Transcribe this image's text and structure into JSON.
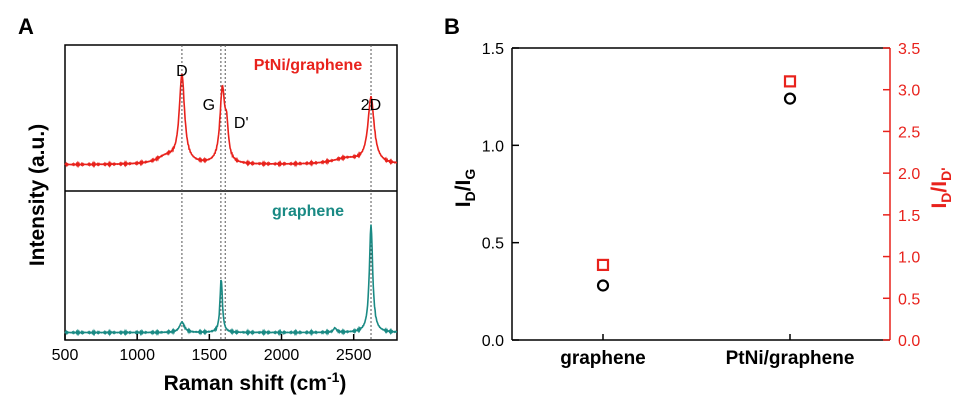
{
  "colors": {
    "red": "#e8221c",
    "teal": "#1a8a84",
    "black": "#000000"
  },
  "panel_a": {
    "letter": "A",
    "xlabel_main": "Raman shift (cm",
    "xlabel_sup": "-1",
    "xlabel_end": ")",
    "ylabel": "Intensity (a.u.)"
  },
  "panel_b": {
    "letter": "B",
    "ylabel_main": "I",
    "ylabel_sub1": "D",
    "ylabel_sep": "/I",
    "ylabel_sub2": "G",
    "y2label_main": "I",
    "y2label_sub1": "D",
    "y2label_sep": "/I",
    "y2label_sub2": "D'"
  },
  "chart_data": [
    {
      "type": "line",
      "panel": "A",
      "xlabel": "Raman shift (cm-1)",
      "ylabel": "Intensity (a.u.)",
      "xlim": [
        500,
        2800
      ],
      "xticks": [
        "500",
        "1000",
        "1500",
        "2000",
        "2500"
      ],
      "xtick_values": [
        500,
        1000,
        1500,
        2000,
        2500
      ],
      "peaks": [
        {
          "label": "D",
          "x": 1310
        },
        {
          "label": "G",
          "x": 1580
        },
        {
          "label": "D'",
          "x": 1610
        },
        {
          "label": "2D",
          "x": 2620
        }
      ],
      "series": [
        {
          "name": "PtNi/graphene",
          "color": "#e8221c",
          "baseline": 0.18,
          "peaks": [
            {
              "x": 1310,
              "height": 0.6,
              "width": 22
            },
            {
              "x": 1590,
              "height": 0.5,
              "width": 20
            },
            {
              "x": 1620,
              "height": 0.2,
              "width": 14
            },
            {
              "x": 2620,
              "height": 0.45,
              "width": 26
            }
          ],
          "shoulders": [
            {
              "x": 1200,
              "height": 0.05,
              "width": 80
            },
            {
              "x": 2450,
              "height": 0.04,
              "width": 120
            }
          ]
        },
        {
          "name": "graphene",
          "color": "#1a8a84",
          "baseline": 0.05,
          "peaks": [
            {
              "x": 1310,
              "height": 0.07,
              "width": 20
            },
            {
              "x": 1582,
              "height": 0.36,
              "width": 10
            },
            {
              "x": 2370,
              "height": 0.03,
              "width": 12
            },
            {
              "x": 2620,
              "height": 0.72,
              "width": 14
            }
          ],
          "shoulders": []
        }
      ]
    },
    {
      "type": "scatter",
      "panel": "B",
      "categories": [
        "graphene",
        "PtNi/graphene"
      ],
      "ylim": [
        0,
        1.5
      ],
      "yticks": [
        "0.0",
        "0.5",
        "1.0",
        "1.5"
      ],
      "ytick_values": [
        0.0,
        0.5,
        1.0,
        1.5
      ],
      "y2lim": [
        0,
        3.5
      ],
      "y2ticks": [
        "0.0",
        "0.5",
        "1.0",
        "1.5",
        "2.0",
        "2.5",
        "3.0",
        "3.5"
      ],
      "y2tick_values": [
        0.0,
        0.5,
        1.0,
        1.5,
        2.0,
        2.5,
        3.0,
        3.5
      ],
      "series": [
        {
          "axis": "left",
          "marker": "circle",
          "color": "#000000",
          "values": [
            0.28,
            1.24
          ]
        },
        {
          "axis": "right",
          "marker": "square",
          "color": "#e8221c",
          "values": [
            0.9,
            3.1
          ]
        }
      ]
    }
  ]
}
